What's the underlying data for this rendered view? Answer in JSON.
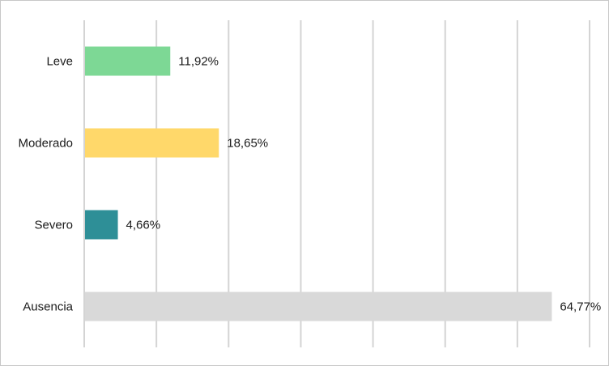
{
  "chart_data": {
    "type": "bar",
    "orientation": "horizontal",
    "categories": [
      "Leve",
      "Moderado",
      "Severo",
      "Ausencia"
    ],
    "values": [
      11.92,
      18.65,
      4.66,
      64.77
    ],
    "value_labels": [
      "11,92%",
      "18,65%",
      "4,66%",
      "64,77%"
    ],
    "bar_colors": [
      "#7dd895",
      "#ffd86a",
      "#2e8f97",
      "#d9d9d9"
    ],
    "xlim": [
      0,
      70
    ],
    "x_grid_step": 10,
    "grid": true,
    "title": "",
    "xlabel": "",
    "ylabel": ""
  }
}
